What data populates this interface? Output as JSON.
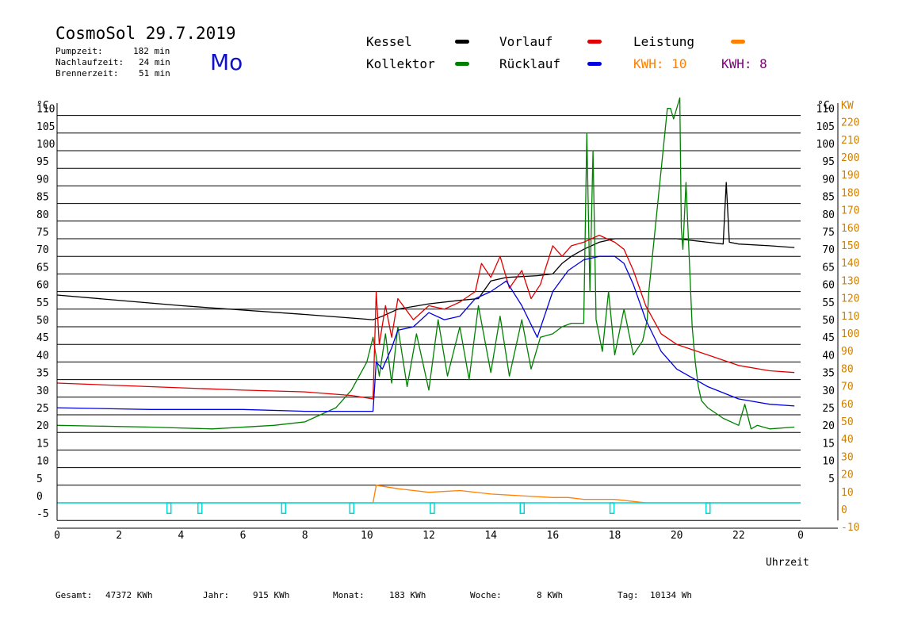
{
  "header": {
    "title": "CosmoSol 29.7.2019",
    "weekday": "Mo",
    "stats": [
      {
        "label": "Pumpzeit:",
        "value": "182 min"
      },
      {
        "label": "Nachlaufzeit:",
        "value": "24 min"
      },
      {
        "label": "Brennerzeit:",
        "value": "51 min"
      }
    ]
  },
  "legend": {
    "kessel": "Kessel",
    "kollektor": "Kollektor",
    "vorlauf": "Vorlauf",
    "ruecklauf": "Rücklauf",
    "leistung": "Leistung",
    "kwh1": "KWH: 10",
    "kwh2": "KWH: 8"
  },
  "footer": {
    "gesamt_label": "Gesamt:",
    "gesamt_value": "47372 KWh",
    "jahr_label": "Jahr:",
    "jahr_value": "915 KWh",
    "monat_label": "Monat:",
    "monat_value": "183 KWh",
    "woche_label": "Woche:",
    "woche_value": "8 KWh",
    "tag_label": "Tag:",
    "tag_value": "10134 Wh"
  },
  "colors": {
    "kessel": "#000000",
    "kollektor": "#008000",
    "vorlauf": "#e00000",
    "ruecklauf": "#0000e0",
    "leistung": "#ff8000",
    "kwh2": "#800080",
    "pump": "#00d8d8",
    "right_axis": "#d08000"
  },
  "chart_data": {
    "type": "line",
    "xlabel": "Uhrzeit",
    "x_ticks": [
      "0",
      "2",
      "4",
      "6",
      "8",
      "10",
      "12",
      "14",
      "16",
      "18",
      "20",
      "22",
      "0"
    ],
    "xlim": [
      0,
      24
    ],
    "y_unit_left": "°C",
    "y_unit_right_temp": "°C",
    "y_unit_right_power": "KW",
    "ylim": [
      -5,
      110
    ],
    "y_ticks_left": [
      "-5",
      "0",
      "5",
      "10",
      "15",
      "20",
      "25",
      "30",
      "35",
      "40",
      "45",
      "50",
      "55",
      "60",
      "65",
      "70",
      "75",
      "80",
      "85",
      "90",
      "95",
      "100",
      "105",
      "110"
    ],
    "y_ticks_right_temp": [
      "5",
      "10",
      "15",
      "20",
      "25",
      "30",
      "35",
      "40",
      "45",
      "50",
      "55",
      "60",
      "65",
      "70",
      "75",
      "80",
      "85",
      "90",
      "95",
      "100",
      "105",
      "110"
    ],
    "y_ticks_right_power": [
      "-10",
      "0",
      "10",
      "20",
      "30",
      "40",
      "50",
      "60",
      "70",
      "80",
      "90",
      "100",
      "110",
      "120",
      "130",
      "140",
      "150",
      "160",
      "170",
      "180",
      "190",
      "200",
      "210",
      "220"
    ],
    "grid": true,
    "series": [
      {
        "name": "Kessel",
        "color": "#000000",
        "x": [
          0,
          4,
          8,
          10.2,
          10.5,
          11,
          12,
          13,
          13.6,
          14,
          14.5,
          15.5,
          16,
          16.3,
          16.6,
          17,
          17.5,
          18,
          19,
          20,
          21,
          21.5,
          21.6,
          21.7,
          22,
          23,
          23.8
        ],
        "y": [
          59,
          56,
          53.5,
          52,
          53,
          55,
          56.5,
          57.5,
          58,
          63,
          64,
          64.5,
          65,
          68,
          70,
          72,
          74,
          75,
          75,
          75,
          74,
          73.5,
          91,
          74,
          73.5,
          73,
          72.5
        ]
      },
      {
        "name": "Kollektor",
        "color": "#008000",
        "x": [
          0,
          3,
          5,
          7,
          8,
          8.5,
          9,
          9.5,
          10,
          10.2,
          10.4,
          10.6,
          10.8,
          11,
          11.3,
          11.6,
          12,
          12.3,
          12.6,
          13,
          13.3,
          13.6,
          14,
          14.3,
          14.6,
          15,
          15.3,
          15.6,
          16,
          16.3,
          16.6,
          17,
          17.1,
          17.2,
          17.3,
          17.4,
          17.6,
          17.8,
          18,
          18.3,
          18.6,
          18.9,
          19.05,
          19.1,
          19.7,
          19.8,
          19.9,
          20.1,
          20.15,
          20.2,
          20.3,
          20.5,
          20.6,
          20.7,
          20.8,
          21,
          21.5,
          22,
          22.2,
          22.4,
          22.6,
          23,
          23.8
        ],
        "y": [
          22,
          21.5,
          21,
          22,
          23,
          25,
          27,
          32,
          40,
          47,
          36,
          48,
          34,
          50,
          33,
          48,
          32,
          52,
          36,
          50,
          35,
          56,
          37,
          53,
          36,
          52,
          38,
          47,
          48,
          50,
          51,
          51,
          105,
          60,
          100,
          52,
          43,
          60,
          42,
          55,
          42,
          46,
          52,
          60,
          112,
          112,
          109,
          115,
          78,
          72,
          91,
          50,
          40,
          33,
          29,
          27,
          24,
          22,
          28,
          21,
          22,
          21,
          21.5
        ]
      },
      {
        "name": "Vorlauf",
        "color": "#e00000",
        "x": [
          0,
          3,
          6,
          8,
          9.5,
          10.2,
          10.3,
          10.4,
          10.6,
          10.8,
          11,
          11.5,
          12,
          12.5,
          13,
          13.5,
          13.7,
          14,
          14.3,
          14.6,
          15,
          15.3,
          15.6,
          16,
          16.3,
          16.6,
          17,
          17.5,
          18,
          18.3,
          18.6,
          19,
          19.5,
          20,
          21,
          22,
          23,
          23.8
        ],
        "y": [
          34,
          33,
          32,
          31.5,
          30.5,
          29.5,
          60,
          45,
          56,
          47,
          58,
          52,
          56,
          55,
          57,
          60,
          68,
          64,
          70,
          61,
          66,
          58,
          62,
          73,
          70,
          73,
          74,
          76,
          74,
          72,
          66,
          56,
          48,
          45,
          42,
          39,
          37.5,
          37
        ]
      },
      {
        "name": "Rücklauf",
        "color": "#0000e0",
        "x": [
          0,
          3,
          6,
          8,
          9.5,
          10.2,
          10.3,
          10.5,
          10.8,
          11,
          11.5,
          12,
          12.5,
          13,
          13.5,
          14,
          14.5,
          15,
          15.5,
          16,
          16.5,
          17,
          17.5,
          18,
          18.3,
          18.6,
          19,
          19.5,
          20,
          21,
          22,
          23,
          23.8
        ],
        "y": [
          27,
          26.5,
          26.5,
          26,
          26,
          26,
          40,
          38,
          44,
          49,
          50,
          54,
          52,
          53,
          58,
          60,
          63,
          56,
          47,
          60,
          66,
          69,
          70,
          70,
          68,
          62,
          52,
          43,
          38,
          33,
          29.5,
          28,
          27.5
        ]
      },
      {
        "name": "Leistung",
        "color": "#ff8000",
        "axis": "right_power",
        "x": [
          0,
          10.2,
          10.3,
          11,
          12,
          13,
          14,
          15,
          16,
          16.5,
          17,
          18,
          18.5,
          19,
          24
        ],
        "y": [
          0,
          0,
          10,
          8,
          6,
          7,
          5,
          4,
          3,
          3,
          2,
          2,
          1,
          0,
          0
        ]
      },
      {
        "name": "Pumpe",
        "color": "#00d8d8",
        "axis": "right_power",
        "x": [
          3.6,
          4.6,
          7.3,
          9.5,
          12.1,
          15.0,
          17.9,
          21.0
        ],
        "y": [
          -3,
          -3,
          -3,
          -3,
          -3,
          -3,
          -3,
          -3
        ]
      }
    ]
  }
}
